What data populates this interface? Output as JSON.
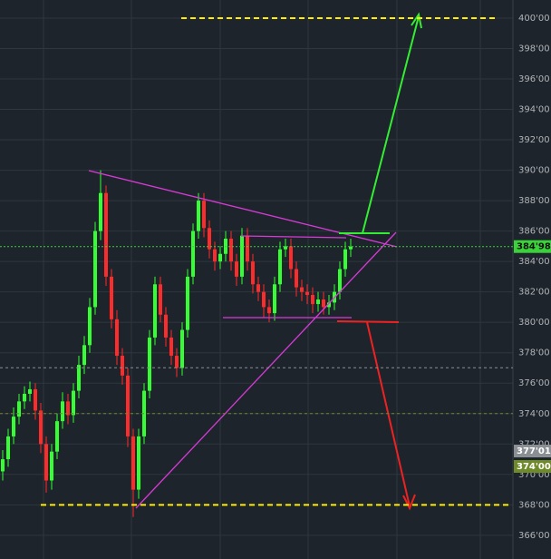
{
  "chart_data": {
    "type": "candlestick",
    "open": [
      370.2,
      371,
      372.5,
      373.8,
      374.8,
      375.3,
      375.6,
      374.2,
      372,
      369.6,
      371.5,
      373.5,
      374.8,
      373.9,
      375.5,
      377.2,
      378.5,
      381,
      386,
      388.5,
      383,
      380.2,
      377.8,
      376.5,
      372.5,
      369,
      372.5,
      375.5,
      379,
      382.5,
      380.5,
      379,
      377.8,
      377,
      379.5,
      383,
      386,
      388,
      386.2,
      384.8,
      384,
      384.5,
      385.5,
      384,
      383,
      385.7,
      384,
      382.5,
      382,
      381,
      380.6,
      382.5,
      384.8,
      385,
      383.5,
      382.3,
      382,
      381.8,
      381.2,
      381.5,
      381,
      381.3,
      382,
      383.5,
      384.8
    ],
    "high": [
      371.6,
      373,
      374.4,
      375.3,
      375.8,
      376.1,
      376,
      374.7,
      372.5,
      372,
      374,
      375.4,
      375.3,
      376,
      377.8,
      379.1,
      381.6,
      386.6,
      390,
      389,
      383.5,
      380.8,
      378.3,
      377,
      373,
      373,
      376,
      379.5,
      383,
      383,
      381,
      379.5,
      378.3,
      380,
      383.5,
      386.5,
      388.5,
      388.5,
      386.7,
      385.3,
      385,
      386,
      386,
      384.5,
      386.2,
      386.2,
      384.5,
      383,
      382.5,
      381.5,
      383,
      385.3,
      385.5,
      385.5,
      384,
      382.8,
      382.5,
      382.3,
      382,
      382,
      381.8,
      382.5,
      384,
      385.3,
      385.5
    ],
    "low": [
      369.6,
      370.5,
      372,
      373.3,
      374.3,
      374.8,
      373.6,
      371.4,
      368.8,
      369,
      371,
      373,
      373.3,
      373.4,
      375,
      376.6,
      378,
      380.5,
      385.4,
      382.4,
      379.6,
      377.2,
      375.9,
      371.8,
      367.2,
      368.4,
      372,
      375,
      378.5,
      380,
      378.4,
      377.2,
      376.4,
      376.5,
      379,
      382.5,
      385.5,
      385.6,
      384.2,
      383.4,
      383.5,
      384,
      383.4,
      382.4,
      382.5,
      383.4,
      381.9,
      381.4,
      380.3,
      380,
      380.1,
      382,
      384.3,
      382.9,
      381.7,
      381.4,
      381.2,
      380.6,
      380.7,
      380.5,
      380.5,
      380.8,
      381.5,
      383,
      384.3
    ],
    "close": [
      371,
      372.5,
      373.8,
      374.8,
      375.3,
      375.6,
      374.2,
      372,
      369.6,
      371.5,
      373.5,
      374.8,
      373.9,
      375.5,
      377.2,
      378.5,
      381,
      386,
      388.5,
      383,
      380.2,
      377.8,
      376.5,
      372.5,
      369,
      372.5,
      375.5,
      379,
      382.5,
      380.5,
      379,
      377.8,
      377,
      379.5,
      383,
      386,
      388,
      386.2,
      384.8,
      384,
      384.5,
      385.5,
      384,
      383,
      385.7,
      384,
      382.5,
      382,
      381,
      380.6,
      382.5,
      384.8,
      385,
      383.5,
      382.3,
      382,
      381.8,
      381.2,
      381.5,
      381,
      381.3,
      382,
      383.5,
      384.8,
      384.98
    ],
    "up_color": "#33ff33",
    "down_color": "#ff2a2a",
    "ylim": [
      364.44,
      401.19
    ],
    "yticks": [
      {
        "value": 366,
        "label": "366'00"
      },
      {
        "value": 368,
        "label": "368'00"
      },
      {
        "value": 370,
        "label": "370'00"
      },
      {
        "value": 372,
        "label": "372'00"
      },
      {
        "value": 374,
        "label": "374'00"
      },
      {
        "value": 376,
        "label": "376'00"
      },
      {
        "value": 378,
        "label": "378'00"
      },
      {
        "value": 380,
        "label": "380'00"
      },
      {
        "value": 382,
        "label": "382'00"
      },
      {
        "value": 384,
        "label": "384'00"
      },
      {
        "value": 386,
        "label": "386'00"
      },
      {
        "value": 388,
        "label": "388'00"
      },
      {
        "value": 390,
        "label": "390'00"
      },
      {
        "value": 392,
        "label": "392'00"
      },
      {
        "value": 394,
        "label": "394'00"
      },
      {
        "value": 396,
        "label": "396'00"
      },
      {
        "value": 398,
        "label": "398'00"
      },
      {
        "value": 400,
        "label": "400'00"
      }
    ],
    "grid": true,
    "last_price": {
      "value": 384.98,
      "label": "384'98",
      "color": "#3ad13a"
    },
    "levels": [
      {
        "value": 377.01,
        "label": "377'01",
        "color": "#8a8f94"
      },
      {
        "value": 374,
        "label": "374'00",
        "color": "#6f8a2a"
      }
    ],
    "targets": [
      {
        "value": 400,
        "color": "#ffee00"
      },
      {
        "value": 368,
        "color": "#ffee00"
      }
    ]
  }
}
